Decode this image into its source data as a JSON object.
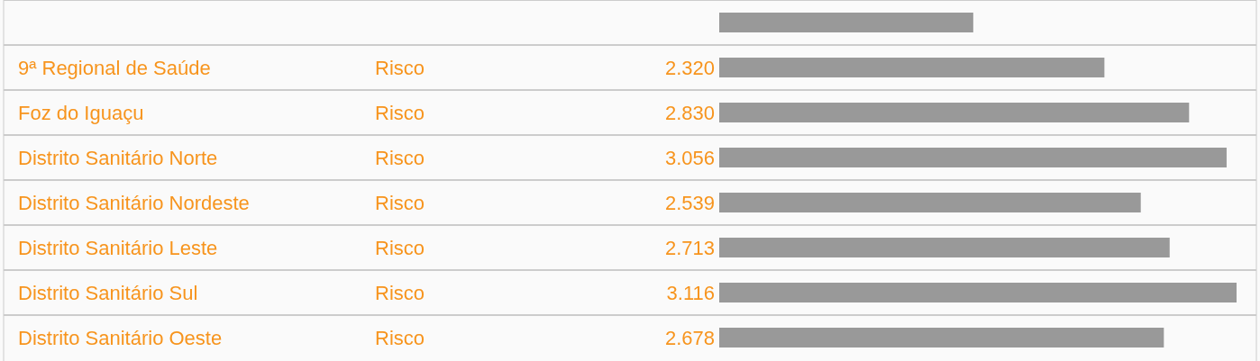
{
  "chart_data": {
    "type": "bar",
    "orientation": "horizontal",
    "categories": [
      null,
      "9ª Regional de Saúde",
      "Foz do Iguaçu",
      "Distrito Sanitário Norte",
      "Distrito Sanitário Nordeste",
      "Distrito Sanitário Leste",
      "Distrito Sanitário Sul",
      "Distrito Sanitário Oeste"
    ],
    "values": [
      1530,
      2320,
      2830,
      3056,
      2539,
      2713,
      3116,
      2678
    ],
    "value_labels": [
      null,
      "2.320",
      "2.830",
      "3.056",
      "2.539",
      "2.713",
      "3.116",
      "2.678"
    ],
    "color": "#999999",
    "annotations": [
      "Risco",
      "Risco",
      "Risco",
      "Risco",
      "Risco",
      "Risco",
      "Risco"
    ]
  }
}
